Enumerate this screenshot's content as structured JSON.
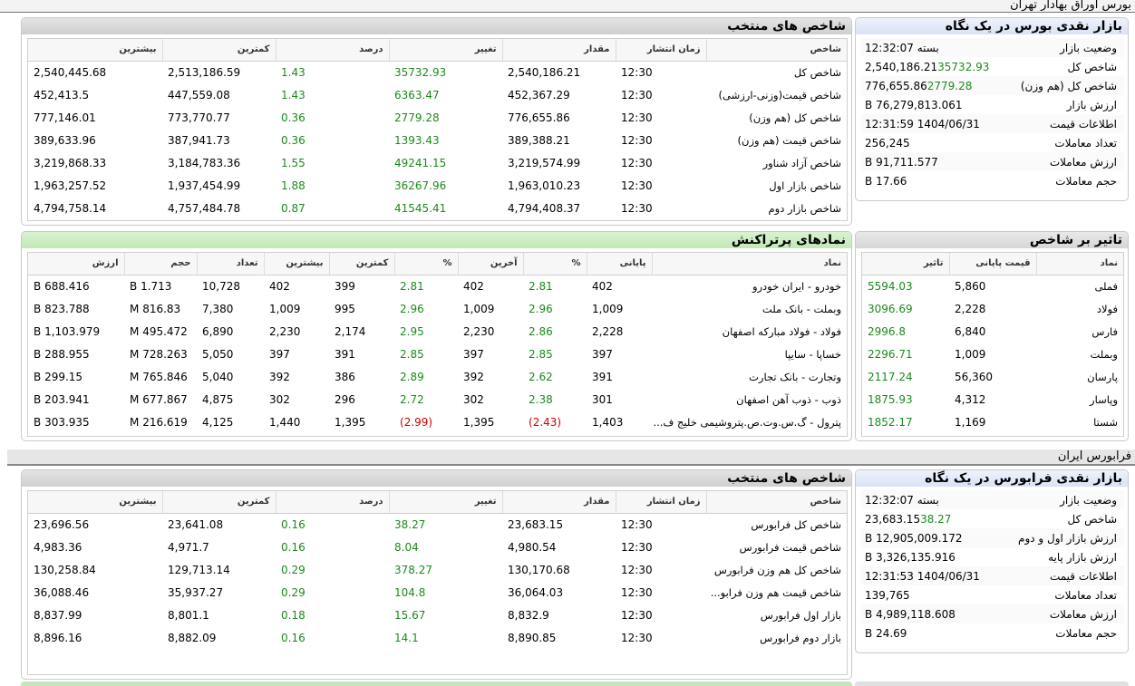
{
  "top_header": "بورس اوراق بهادار تهران",
  "fara_header": "فرابورس ایران",
  "bourse_indices": {
    "title": "شاخص های منتخب",
    "columns": [
      "شاخص",
      "زمان انتشار",
      "مقدار",
      "تغییر",
      "درصد",
      "کمترین",
      "بیشترین"
    ],
    "rows": [
      {
        "name": "شاخص کل",
        "time": "12:30",
        "value": "2,540,186.21",
        "change": "35732.93",
        "percent": "1.43",
        "low": "2,513,186.59",
        "high": "2,540,445.68"
      },
      {
        "name": "شاخص قیمت(وزنی-ارزشی)",
        "time": "12:30",
        "value": "452,367.29",
        "change": "6363.47",
        "percent": "1.43",
        "low": "447,559.08",
        "high": "452,413.5"
      },
      {
        "name": "شاخص کل (هم وزن)",
        "time": "12:30",
        "value": "776,655.86",
        "change": "2779.28",
        "percent": "0.36",
        "low": "773,770.77",
        "high": "777,146.01"
      },
      {
        "name": "شاخص قیمت (هم وزن)",
        "time": "12:30",
        "value": "389,388.21",
        "change": "1393.43",
        "percent": "0.36",
        "low": "387,941.73",
        "high": "389,633.96"
      },
      {
        "name": "شاخص آزاد شناور",
        "time": "12:30",
        "value": "3,219,574.99",
        "change": "49241.15",
        "percent": "1.55",
        "low": "3,184,783.36",
        "high": "3,219,868.33"
      },
      {
        "name": "شاخص بازار اول",
        "time": "12:30",
        "value": "1,963,010.23",
        "change": "36267.96",
        "percent": "1.88",
        "low": "1,937,454.99",
        "high": "1,963,257.52"
      },
      {
        "name": "شاخص بازار دوم",
        "time": "12:30",
        "value": "4,794,408.37",
        "change": "41545.41",
        "percent": "0.87",
        "low": "4,757,484.78",
        "high": "4,794,758.14"
      }
    ]
  },
  "bourse_glance": {
    "title": "بازار نقدی بورس در یک نگاه",
    "rows": [
      {
        "label": "وضعیت بازار",
        "value": "بسته 12:32:07",
        "extra": ""
      },
      {
        "label": "شاخص کل",
        "value": "2,540,186.21",
        "extra": "35732.93"
      },
      {
        "label": "شاخص کل (هم وزن)",
        "value": "776,655.86",
        "extra": "2779.28"
      },
      {
        "label": "ارزش بازار",
        "value": "76,279,813.061 B",
        "extra": ""
      },
      {
        "label": "اطلاعات قیمت",
        "value": "1404/06/31 12:31:59",
        "extra": ""
      },
      {
        "label": "تعداد معاملات",
        "value": "256,245",
        "extra": ""
      },
      {
        "label": "ارزش معاملات",
        "value": "91,711.577 B",
        "extra": ""
      },
      {
        "label": "حجم معاملات",
        "value": "17.66 B",
        "extra": ""
      }
    ]
  },
  "active_symbols": {
    "title": "نمادهای پرتراکنش",
    "columns": [
      "نماد",
      "پایانی",
      "%",
      "آخرین",
      "%",
      "کمترین",
      "بیشترین",
      "تعداد",
      "حجم",
      "ارزش"
    ],
    "rows": [
      {
        "name": "خودرو - ایران خودرو",
        "close": "402",
        "close_pct": "2.81",
        "last": "402",
        "last_pct": "2.81",
        "low": "399",
        "high": "402",
        "count": "10,728",
        "volume": "1.713 B",
        "value": "688.416 B",
        "neg": false
      },
      {
        "name": "وبملت - بانک ملت",
        "close": "1,009",
        "close_pct": "2.96",
        "last": "1,009",
        "last_pct": "2.96",
        "low": "995",
        "high": "1,009",
        "count": "7,380",
        "volume": "816.83 M",
        "value": "823.788 B",
        "neg": false
      },
      {
        "name": "فولاد - فولاد مبارکه اصفهان",
        "close": "2,228",
        "close_pct": "2.86",
        "last": "2,230",
        "last_pct": "2.95",
        "low": "2,174",
        "high": "2,230",
        "count": "6,890",
        "volume": "495.472 M",
        "value": "1,103.979 B",
        "neg": false
      },
      {
        "name": "خساپا - سایپا",
        "close": "397",
        "close_pct": "2.85",
        "last": "397",
        "last_pct": "2.85",
        "low": "391",
        "high": "397",
        "count": "5,050",
        "volume": "728.263 M",
        "value": "288.955 B",
        "neg": false
      },
      {
        "name": "وتجارت - بانک تجارت",
        "close": "391",
        "close_pct": "2.62",
        "last": "392",
        "last_pct": "2.89",
        "low": "386",
        "high": "392",
        "count": "5,040",
        "volume": "765.846 M",
        "value": "299.15 B",
        "neg": false
      },
      {
        "name": "ذوب - ذوب آهن اصفهان",
        "close": "301",
        "close_pct": "2.38",
        "last": "302",
        "last_pct": "2.72",
        "low": "296",
        "high": "302",
        "count": "4,875",
        "volume": "677.867 M",
        "value": "203.941 B",
        "neg": false
      },
      {
        "name": "پترول - گ.س.وت.ص.پتروشیمی خلیج ف...",
        "close": "1,403",
        "close_pct": "(2.43)",
        "last": "1,395",
        "last_pct": "(2.99)",
        "low": "1,395",
        "high": "1,440",
        "count": "4,125",
        "volume": "216.619 M",
        "value": "303.935 B",
        "neg": true
      }
    ]
  },
  "index_impact": {
    "title": "تاثیر بر شاخص",
    "columns": [
      "نماد",
      "قیمت پایانی",
      "تاثیر"
    ],
    "rows": [
      {
        "name": "فملی",
        "price": "5,860",
        "impact": "5594.03"
      },
      {
        "name": "فولاد",
        "price": "2,228",
        "impact": "3096.69"
      },
      {
        "name": "فارس",
        "price": "6,840",
        "impact": "2996.8"
      },
      {
        "name": "وبملت",
        "price": "1,009",
        "impact": "2296.71"
      },
      {
        "name": "پارسان",
        "price": "56,360",
        "impact": "2117.24"
      },
      {
        "name": "وپاسار",
        "price": "4,312",
        "impact": "1875.93"
      },
      {
        "name": "شستا",
        "price": "1,169",
        "impact": "1852.17"
      }
    ]
  },
  "fara_indices": {
    "title": "شاخص های منتخب",
    "columns": [
      "شاخص",
      "زمان انتشار",
      "مقدار",
      "تغییر",
      "درصد",
      "کمترین",
      "بیشترین"
    ],
    "rows": [
      {
        "name": "شاخص کل فرابورس",
        "time": "12:30",
        "value": "23,683.15",
        "change": "38.27",
        "percent": "0.16",
        "low": "23,641.08",
        "high": "23,696.56"
      },
      {
        "name": "شاخص قیمت فرابورس",
        "time": "12:30",
        "value": "4,980.54",
        "change": "8.04",
        "percent": "0.16",
        "low": "4,971.7",
        "high": "4,983.36"
      },
      {
        "name": "شاخص کل هم وزن فرابورس",
        "time": "12:30",
        "value": "130,170.68",
        "change": "378.27",
        "percent": "0.29",
        "low": "129,713.14",
        "high": "130,258.84"
      },
      {
        "name": "شاخص قیمت هم وزن فرابو...",
        "time": "12:30",
        "value": "36,064.03",
        "change": "104.8",
        "percent": "0.29",
        "low": "35,937.27",
        "high": "36,088.46"
      },
      {
        "name": "بازار اول فرابورس",
        "time": "12:30",
        "value": "8,832.9",
        "change": "15.67",
        "percent": "0.18",
        "low": "8,801.1",
        "high": "8,837.99"
      },
      {
        "name": "بازار دوم فرابورس",
        "time": "12:30",
        "value": "8,890.85",
        "change": "14.1",
        "percent": "0.16",
        "low": "8,882.09",
        "high": "8,896.16"
      }
    ]
  },
  "fara_glance": {
    "title": "بازار نقدی فرابورس در یک نگاه",
    "rows": [
      {
        "label": "وضعیت بازار",
        "value": "بسته 12:32:07",
        "extra": ""
      },
      {
        "label": "شاخص کل",
        "value": "23,683.15",
        "extra": "38.27"
      },
      {
        "label": "ارزش بازار اول و دوم",
        "value": "12,905,009.172 B",
        "extra": ""
      },
      {
        "label": "ارزش بازار پایه",
        "value": "3,326,135.916 B",
        "extra": ""
      },
      {
        "label": "اطلاعات قیمت",
        "value": "1404/06/31 12:31:53",
        "extra": ""
      },
      {
        "label": "تعداد معاملات",
        "value": "139,765",
        "extra": ""
      },
      {
        "label": "ارزش معاملات",
        "value": "4,989,118.608 B",
        "extra": ""
      },
      {
        "label": "حجم معاملات",
        "value": "24.69 B",
        "extra": ""
      }
    ]
  },
  "colors": {
    "positive": "#1c8a1c",
    "negative": "#d20000",
    "green_header": "#c3e8b8",
    "blue_header": "#d9e2f5"
  }
}
